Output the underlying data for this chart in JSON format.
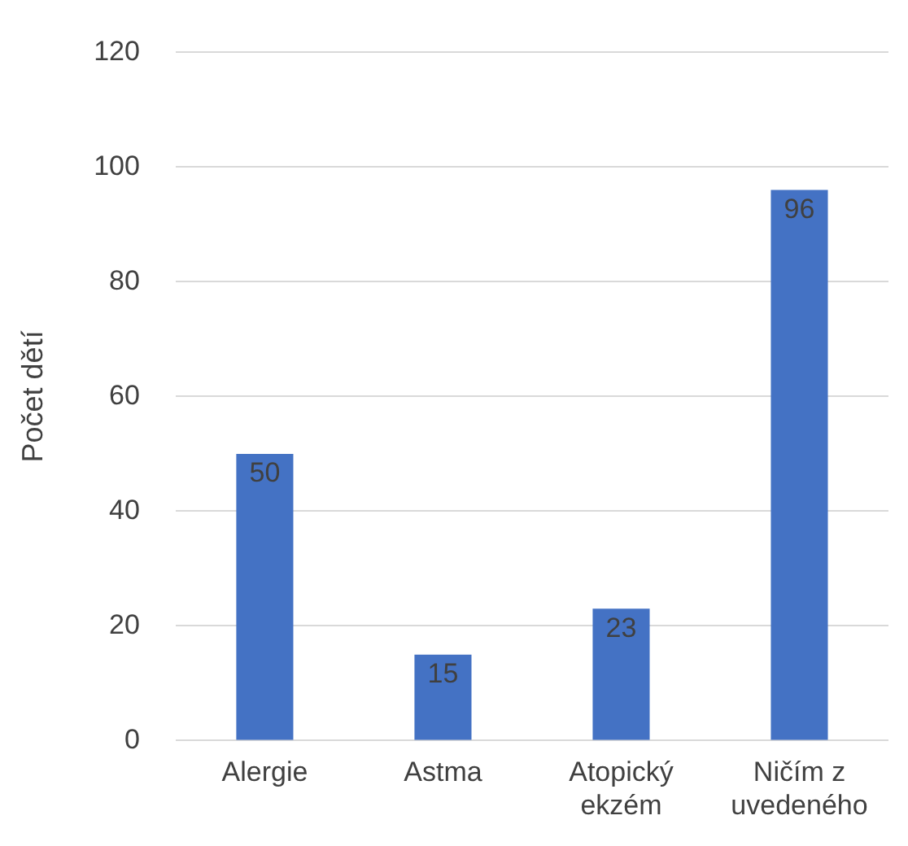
{
  "chart_data": {
    "type": "bar",
    "ylabel": "Počet dětí",
    "categories": [
      "Alergie",
      "Astma",
      "Atopický ekzém",
      "Ničím z uvedeného"
    ],
    "values": [
      50,
      15,
      23,
      96
    ],
    "color": "#4472c4",
    "ylim": [
      0,
      120
    ],
    "yticks": [
      0,
      20,
      40,
      60,
      80,
      100,
      120
    ],
    "grid": "y",
    "data_labels": true,
    "legend": false
  }
}
